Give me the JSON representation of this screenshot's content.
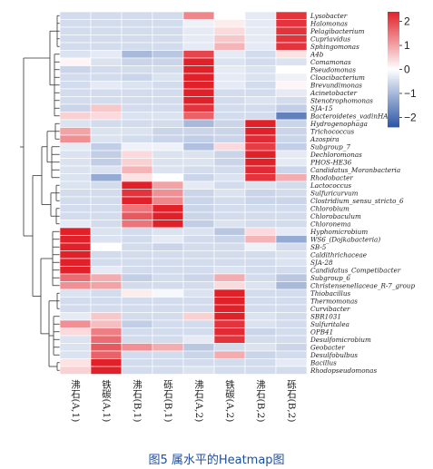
{
  "caption": "图5  属水平的Heatmap图",
  "chart_data": {
    "type": "heatmap",
    "columns": [
      "沸石(A,1)",
      "铁碳(A,1)",
      "沸石(B,1)",
      "砾石(B,1)",
      "沸石(A,2)",
      "铁碳(A,2)",
      "沸石(B,2)",
      "砾石(B,2)"
    ],
    "rows": [
      "Lysobacter",
      "Halomonas",
      "Pelagibacterium",
      "Cupriavidus",
      "Sphingomonas",
      "A4b",
      "Comamonas",
      "Pseudomonas",
      "Cloacibacterium",
      "Brevundimonas",
      "Acinetobacter",
      "Stenotrophomonas",
      "SJA-15",
      "Bacteroidetes_vadinHA17",
      "Hydrogenophaga",
      "Trichococcus",
      "Azospira",
      "Subgroup_7",
      "Dechloromonas",
      "PHOS-HE36",
      "Candidatus_Moranbacteria",
      "Rhodobacter",
      "Lactococcus",
      "Sulfuricurvum",
      "Clostridium_sensu_stricto_6",
      "Chlorobium",
      "Chlorobaculum",
      "Chloronema",
      "Hyphomicrobium",
      "WS6_(Dojkabacteria)",
      "SB-5",
      "Caldithrichaceae",
      "SJA-28",
      "Candidatus_Competibacter",
      "Subgroup_6",
      "Christensenellaceae_R-7_group",
      "Thiobacillus",
      "Thermomonas",
      "Curvibacter",
      "SBR1031",
      "Sulfuritalea",
      "OPB41",
      "Desulfomicrobium",
      "Geobacter",
      "Desulfobulbus",
      "Bacillus",
      "Rhodopseudomonas"
    ],
    "values": [
      [
        -0.5,
        -0.5,
        -0.5,
        -0.5,
        1.3,
        0.0,
        -0.3,
        2.2
      ],
      [
        -0.5,
        -0.5,
        -0.5,
        -0.5,
        -0.2,
        0.2,
        -0.3,
        2.2
      ],
      [
        -0.5,
        -0.5,
        -0.5,
        -0.5,
        -0.3,
        0.4,
        -0.3,
        2.2
      ],
      [
        -0.5,
        -0.5,
        -0.5,
        -0.5,
        -0.3,
        0.6,
        -0.3,
        2.2
      ],
      [
        -0.5,
        -0.5,
        -0.5,
        -0.5,
        -0.3,
        0.8,
        -0.3,
        2.2
      ],
      [
        -0.4,
        -0.3,
        -1.0,
        -0.8,
        2.0,
        -0.3,
        -0.5,
        0.3
      ],
      [
        0.1,
        -0.4,
        -0.6,
        -0.6,
        2.4,
        -0.4,
        -0.5,
        -0.4
      ],
      [
        -0.6,
        -0.5,
        -0.5,
        -0.5,
        2.4,
        -0.3,
        -0.4,
        0.0
      ],
      [
        -0.5,
        -0.5,
        -0.6,
        -0.4,
        2.4,
        -0.3,
        -0.4,
        -0.2
      ],
      [
        -0.5,
        -0.3,
        -0.4,
        -0.5,
        2.4,
        -0.3,
        -0.5,
        0.1
      ],
      [
        -0.5,
        -0.5,
        -0.5,
        -0.5,
        2.4,
        -0.5,
        -0.5,
        -0.3
      ],
      [
        -0.5,
        -0.5,
        -0.5,
        -0.5,
        2.4,
        -0.5,
        -0.4,
        -0.5
      ],
      [
        -0.6,
        0.6,
        -0.5,
        -0.5,
        2.2,
        -0.5,
        -0.5,
        -0.7
      ],
      [
        0.5,
        0.4,
        -0.4,
        -0.4,
        1.7,
        -0.5,
        -0.5,
        -1.8
      ],
      [
        -0.4,
        -0.5,
        -0.5,
        -0.5,
        -1.0,
        -0.6,
        2.4,
        -0.6
      ],
      [
        1.0,
        -0.4,
        -0.4,
        -0.6,
        -0.6,
        -0.6,
        2.4,
        -0.6
      ],
      [
        1.2,
        -0.4,
        -0.5,
        -0.6,
        -0.7,
        -0.6,
        2.3,
        -0.6
      ],
      [
        -0.3,
        -0.7,
        -0.2,
        -0.2,
        -0.9,
        0.4,
        2.1,
        -0.7
      ],
      [
        -0.4,
        -0.7,
        0.4,
        -0.4,
        -0.4,
        -0.6,
        2.4,
        -0.3
      ],
      [
        -0.4,
        -0.7,
        0.5,
        -0.4,
        -0.4,
        -0.6,
        2.4,
        -0.3
      ],
      [
        -0.4,
        -0.4,
        0.8,
        -0.4,
        -0.5,
        -0.5,
        2.3,
        -0.6
      ],
      [
        -0.4,
        -1.2,
        0.3,
        0.0,
        -0.6,
        -0.4,
        2.2,
        0.9
      ],
      [
        -0.4,
        -0.5,
        2.4,
        1.0,
        -0.3,
        -0.5,
        -0.4,
        -0.5
      ],
      [
        -0.5,
        -0.5,
        2.2,
        1.2,
        -0.6,
        -0.4,
        -0.6,
        -0.5
      ],
      [
        -0.5,
        -0.5,
        2.4,
        1.3,
        -0.6,
        -0.5,
        -0.6,
        -0.6
      ],
      [
        -0.5,
        -0.5,
        1.5,
        2.4,
        -0.6,
        -0.5,
        -0.5,
        -0.5
      ],
      [
        -0.5,
        -0.5,
        1.8,
        2.4,
        -0.6,
        -0.5,
        -0.5,
        -0.5
      ],
      [
        -0.3,
        -0.5,
        1.5,
        2.4,
        -0.7,
        -0.4,
        -0.5,
        -0.5
      ],
      [
        2.4,
        -0.4,
        -0.5,
        -0.4,
        -0.4,
        -0.8,
        0.4,
        -0.3
      ],
      [
        2.4,
        -0.4,
        -0.5,
        -0.3,
        -0.5,
        -0.6,
        0.8,
        -1.2
      ],
      [
        2.4,
        0.0,
        -0.5,
        -0.6,
        -0.5,
        -0.5,
        -0.2,
        -0.5
      ],
      [
        2.4,
        -0.5,
        -0.5,
        -0.5,
        -0.5,
        -0.5,
        -0.5,
        -0.4
      ],
      [
        2.4,
        -0.5,
        -0.5,
        -0.5,
        -0.5,
        -0.5,
        -0.5,
        -0.4
      ],
      [
        2.4,
        -0.3,
        -0.5,
        -0.5,
        -0.5,
        -0.4,
        -0.5,
        -0.5
      ],
      [
        1.6,
        0.9,
        -0.7,
        -0.5,
        -0.6,
        0.9,
        -0.5,
        -0.8
      ],
      [
        1.2,
        1.0,
        -0.5,
        -0.5,
        -0.5,
        0.4,
        -0.4,
        -1.0
      ],
      [
        -0.4,
        -0.5,
        0.2,
        -0.1,
        -0.4,
        2.4,
        -0.5,
        -0.5
      ],
      [
        -0.5,
        -0.5,
        -0.5,
        -0.5,
        -0.5,
        2.4,
        -0.5,
        -0.5
      ],
      [
        -0.5,
        -0.5,
        -0.5,
        -0.5,
        -0.5,
        2.4,
        -0.5,
        -0.5
      ],
      [
        -0.3,
        0.6,
        -0.5,
        -0.5,
        0.5,
        2.4,
        -0.4,
        -0.5
      ],
      [
        1.2,
        0.7,
        -0.7,
        -0.5,
        -0.5,
        2.2,
        -0.4,
        -0.5
      ],
      [
        0.4,
        1.4,
        -0.5,
        -0.5,
        -0.5,
        2.3,
        -0.6,
        -0.5
      ],
      [
        -0.4,
        1.6,
        -0.5,
        -0.5,
        -0.3,
        2.2,
        -0.5,
        -0.5
      ],
      [
        -0.4,
        1.8,
        1.2,
        0.9,
        -0.8,
        -0.5,
        -0.4,
        -0.6
      ],
      [
        -0.4,
        1.7,
        -0.5,
        -0.5,
        -0.6,
        0.9,
        -0.6,
        -0.5
      ],
      [
        0.3,
        2.4,
        -0.5,
        -0.5,
        -0.5,
        -0.5,
        -0.5,
        -0.3
      ],
      [
        0.5,
        2.4,
        -0.5,
        -0.5,
        -0.4,
        -0.5,
        -0.5,
        -0.5
      ]
    ],
    "colorbar": {
      "ticks": [
        2,
        1,
        0,
        -1,
        -2
      ],
      "range": [
        -2.4,
        2.4
      ],
      "colors": [
        "#2d56a6",
        "#ffffff",
        "#e0212a"
      ]
    },
    "row_dendrogram": true,
    "legend": "right"
  }
}
